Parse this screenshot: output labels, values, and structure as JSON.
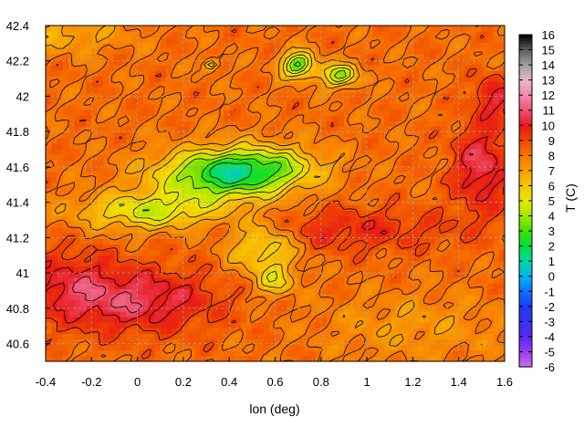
{
  "chart_data": {
    "type": "heatmap",
    "title": "",
    "xlabel": "lon (deg)",
    "ylabel": "",
    "xlim": [
      -0.4,
      1.6
    ],
    "ylim": [
      40.5,
      42.4
    ],
    "x_ticks": [
      "-0.4",
      "-0.2",
      "0",
      "0.2",
      "0.4",
      "0.6",
      "0.8",
      "1",
      "1.2",
      "1.4",
      "1.6"
    ],
    "y_ticks": [
      "40.6",
      "40.8",
      "41",
      "41.2",
      "41.4",
      "41.6",
      "41.8",
      "42",
      "42.2",
      "42.4"
    ],
    "grid": true,
    "contours": true,
    "colorbar": {
      "label": "T (C)",
      "min": -6,
      "max": 16,
      "ticks": [
        "16",
        "15",
        "14",
        "13",
        "12",
        "11",
        "10",
        "9",
        "8",
        "7",
        "6",
        "5",
        "4",
        "3",
        "2",
        "1",
        "0",
        "-1",
        "-2",
        "-3",
        "-4",
        "-5",
        "-6"
      ],
      "palette": [
        {
          "value": -6,
          "color": "#d070f0"
        },
        {
          "value": -5,
          "color": "#9a3ef0"
        },
        {
          "value": -4,
          "color": "#5a28f0"
        },
        {
          "value": -2,
          "color": "#1a3cf0"
        },
        {
          "value": -1,
          "color": "#1070ff"
        },
        {
          "value": 0,
          "color": "#00b4f0"
        },
        {
          "value": 1,
          "color": "#00d8a0"
        },
        {
          "value": 2,
          "color": "#00e040"
        },
        {
          "value": 3,
          "color": "#40e000"
        },
        {
          "value": 4,
          "color": "#a0e800"
        },
        {
          "value": 5,
          "color": "#e8e800"
        },
        {
          "value": 6,
          "color": "#f8c800"
        },
        {
          "value": 7,
          "color": "#f8a000"
        },
        {
          "value": 8,
          "color": "#f87800"
        },
        {
          "value": 9,
          "color": "#f04800"
        },
        {
          "value": 10,
          "color": "#e81818"
        },
        {
          "value": 11,
          "color": "#f05070"
        },
        {
          "value": 12,
          "color": "#f088a8"
        },
        {
          "value": 13,
          "color": "#e8b8c8"
        },
        {
          "value": 14,
          "color": "#a0a0a0"
        },
        {
          "value": 15,
          "color": "#606060"
        },
        {
          "value": 16,
          "color": "#000000"
        }
      ]
    },
    "field": {
      "background_value": 8.2,
      "features": [
        {
          "kind": "cold",
          "lon": 0.35,
          "lat": 41.55,
          "amp": -5.0,
          "rx": 0.28,
          "ry": 0.14
        },
        {
          "kind": "cold",
          "lon": 0.55,
          "lat": 41.6,
          "amp": -3.5,
          "rx": 0.25,
          "ry": 0.12
        },
        {
          "kind": "cold",
          "lon": 0.05,
          "lat": 41.35,
          "amp": -3.5,
          "rx": 0.3,
          "ry": 0.1
        },
        {
          "kind": "cold",
          "lon": 0.55,
          "lat": 41.15,
          "amp": -3.0,
          "rx": 0.15,
          "ry": 0.15
        },
        {
          "kind": "cold",
          "lon": 0.6,
          "lat": 40.95,
          "amp": -2.5,
          "rx": 0.08,
          "ry": 0.08
        },
        {
          "kind": "cold",
          "lon": 0.7,
          "lat": 42.18,
          "amp": -5.5,
          "rx": 0.07,
          "ry": 0.07
        },
        {
          "kind": "cold",
          "lon": 0.88,
          "lat": 42.12,
          "amp": -4.5,
          "rx": 0.08,
          "ry": 0.06
        },
        {
          "kind": "cold",
          "lon": 0.32,
          "lat": 42.18,
          "amp": -3.5,
          "rx": 0.03,
          "ry": 0.03
        },
        {
          "kind": "warm",
          "lon": 0.0,
          "lat": 40.85,
          "amp": 2.5,
          "rx": 0.35,
          "ry": 0.18
        },
        {
          "kind": "warm",
          "lon": -0.3,
          "lat": 40.95,
          "amp": 1.5,
          "rx": 0.2,
          "ry": 0.2
        },
        {
          "kind": "warm",
          "lon": 1.5,
          "lat": 41.6,
          "amp": 2.5,
          "rx": 0.12,
          "ry": 0.25
        },
        {
          "kind": "warm",
          "lon": 1.55,
          "lat": 42.0,
          "amp": 2.0,
          "rx": 0.08,
          "ry": 0.12
        },
        {
          "kind": "warm",
          "lon": 0.9,
          "lat": 41.25,
          "amp": 1.5,
          "rx": 0.5,
          "ry": 0.12
        },
        {
          "kind": "warm",
          "lon": 1.2,
          "lat": 40.7,
          "amp": -1.0,
          "rx": 0.4,
          "ry": 0.18
        },
        {
          "kind": "warm",
          "lon": -0.35,
          "lat": 42.35,
          "amp": -1.5,
          "rx": 0.3,
          "ry": 0.1
        }
      ]
    }
  }
}
